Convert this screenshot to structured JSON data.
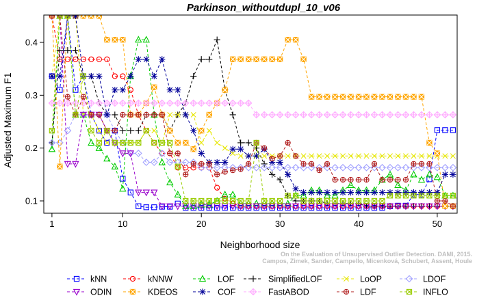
{
  "chart_data": {
    "type": "line",
    "title": "Parkinson_withoutdupl_10_v06",
    "xlabel": "Neighborhood size",
    "ylabel": "Adjusted Maximum F1",
    "xlim": [
      0,
      53
    ],
    "ylim": [
      0.06,
      0.45
    ],
    "xticks": [
      1,
      10,
      20,
      30,
      40,
      50
    ],
    "yticks": [
      0.1,
      0.2,
      0.3,
      0.4
    ],
    "grid": false,
    "legend_position": "bottom",
    "credit": "Campos, Zimek, Sander, Campello, Micenková, Schubert, Assent, Houle\nOn the Evaluation of Unsupervised Outlier Detection. DAMI, 2015.",
    "series": [
      {
        "name": "kNN",
        "color": "#0000ff",
        "marker": "square",
        "dash": "4,3",
        "values": [
          0.336,
          0.31,
          0.45,
          0.31,
          0.336,
          0.263,
          0.233,
          0.21,
          0.233,
          0.142,
          0.116,
          0.09,
          0.088,
          0.088,
          0.089,
          0.089,
          0.095,
          0.087,
          0.087,
          0.087,
          0.087,
          0.087,
          0.087,
          0.087,
          0.087,
          0.087,
          0.087,
          0.087,
          0.087,
          0.087,
          0.087,
          0.087,
          0.087,
          0.087,
          0.087,
          0.087,
          0.087,
          0.087,
          0.087,
          0.087,
          0.087,
          0.087,
          0.087,
          0.09,
          0.091,
          0.091,
          0.112,
          0.112,
          0.141,
          0.234,
          0.234,
          0.234
        ]
      },
      {
        "name": "kNNW",
        "color": "#ff0000",
        "marker": "circle",
        "dash": "4,3",
        "values": [
          0.45,
          0.368,
          0.368,
          0.368,
          0.368,
          0.368,
          0.368,
          0.368,
          0.336,
          0.336,
          0.31,
          0.263,
          0.233,
          0.21,
          0.19,
          0.19,
          0.163,
          0.163,
          0.163,
          0.163,
          0.163,
          0.125,
          0.104,
          0.095,
          0.09,
          0.09,
          0.09,
          0.09,
          0.09,
          0.09,
          0.09,
          0.09,
          0.09,
          0.09,
          0.09,
          0.09,
          0.09,
          0.09,
          0.09,
          0.09,
          0.09,
          0.09,
          0.09,
          0.09,
          0.09,
          0.09,
          0.09,
          0.09,
          0.09,
          0.09,
          0.09,
          0.09
        ]
      },
      {
        "name": "LOF",
        "color": "#00cc00",
        "marker": "triangle",
        "dash": "4,3",
        "values": [
          0.198,
          0.45,
          0.45,
          0.263,
          0.263,
          0.21,
          0.2,
          0.18,
          0.165,
          0.123,
          0.336,
          0.405,
          0.405,
          0.263,
          0.173,
          0.135,
          0.112,
          0.09,
          0.09,
          0.093,
          0.093,
          0.1,
          0.112,
          0.112,
          0.095,
          0.095,
          0.095,
          0.095,
          0.095,
          0.095,
          0.095,
          0.11,
          0.11,
          0.12,
          0.12,
          0.11,
          0.11,
          0.12,
          0.13,
          0.12,
          0.12,
          0.12,
          0.14,
          0.15,
          0.13,
          0.12,
          0.15,
          0.14,
          0.15,
          0.145,
          0.11,
          0.11
        ]
      },
      {
        "name": "SimplifiedLOF",
        "color": "#000000",
        "marker": "plus",
        "dash": "4,3",
        "values": [
          0.21,
          0.385,
          0.385,
          0.385,
          0.336,
          0.336,
          0.285,
          0.263,
          0.263,
          0.233,
          0.233,
          0.233,
          0.263,
          0.263,
          0.263,
          0.233,
          0.263,
          0.285,
          0.336,
          0.368,
          0.368,
          0.405,
          0.31,
          0.263,
          0.21,
          0.21,
          0.2,
          0.17,
          0.15,
          0.14,
          0.11,
          0.1,
          0.1,
          0.1,
          0.1,
          0.095,
          0.095,
          0.095,
          0.095,
          0.095,
          0.09,
          0.09,
          0.09,
          0.09,
          0.09,
          0.09,
          0.09,
          0.09,
          0.09,
          0.09,
          0.09,
          0.09
        ]
      },
      {
        "name": "LoOP",
        "color": "#e6e600",
        "marker": "cross",
        "dash": "4,3",
        "values": [
          0.336,
          0.45,
          0.45,
          0.45,
          0.263,
          0.263,
          0.233,
          0.21,
          0.21,
          0.21,
          0.21,
          0.21,
          0.233,
          0.233,
          0.21,
          0.263,
          0.263,
          0.263,
          0.263,
          0.21,
          0.233,
          0.21,
          0.2,
          0.19,
          0.185,
          0.185,
          0.185,
          0.185,
          0.185,
          0.185,
          0.185,
          0.185,
          0.185,
          0.185,
          0.185,
          0.185,
          0.185,
          0.185,
          0.185,
          0.185,
          0.185,
          0.185,
          0.185,
          0.185,
          0.185,
          0.185,
          0.185,
          0.185,
          0.185,
          0.185,
          0.185,
          0.185
        ]
      },
      {
        "name": "LDOF",
        "color": "#a0a0ff",
        "marker": "diamond",
        "dash": "4,3",
        "values": [
          0.21,
          0.21,
          0.233,
          0.263,
          0.263,
          0.263,
          0.263,
          0.263,
          0.233,
          0.21,
          0.19,
          0.19,
          0.173,
          0.173,
          0.19,
          0.173,
          0.173,
          0.173,
          0.173,
          0.163,
          0.163,
          0.163,
          0.163,
          0.163,
          0.163,
          0.163,
          0.163,
          0.163,
          0.163,
          0.163,
          0.163,
          0.163,
          0.163,
          0.163,
          0.163,
          0.163,
          0.163,
          0.163,
          0.163,
          0.163,
          0.163,
          0.163,
          0.163,
          0.163,
          0.163,
          0.163,
          0.163,
          0.163,
          0.163,
          0.163,
          0.163,
          0.163
        ]
      },
      {
        "name": "ODIN",
        "color": "#9900cc",
        "marker": "triangle-down",
        "dash": "4,3",
        "values": [
          0.45,
          0.45,
          0.17,
          0.17,
          0.263,
          0.263,
          0.263,
          0.233,
          0.21,
          0.19,
          0.19,
          0.116,
          0.116,
          0.116,
          0.09,
          0.09,
          0.09,
          0.09,
          0.09,
          0.09,
          0.09,
          0.09,
          0.09,
          0.09,
          0.09,
          0.09,
          0.09,
          0.09,
          0.09,
          0.09,
          0.09,
          0.09,
          0.09,
          0.09,
          0.09,
          0.09,
          0.09,
          0.09,
          0.09,
          0.09,
          0.09,
          0.09,
          0.09,
          0.09,
          0.09,
          0.09,
          0.09,
          0.09,
          0.09,
          0.09,
          0.09,
          0.09
        ]
      },
      {
        "name": "KDEOS",
        "color": "#ffa500",
        "marker": "square-filled",
        "dash": "4,3",
        "values": [
          0.45,
          0.165,
          0.45,
          0.45,
          0.45,
          0.45,
          0.45,
          0.405,
          0.405,
          0.405,
          0.263,
          0.263,
          0.285,
          0.315,
          0.263,
          0.233,
          0.21,
          0.21,
          0.198,
          0.233,
          0.263,
          0.285,
          0.31,
          0.368,
          0.368,
          0.368,
          0.368,
          0.368,
          0.368,
          0.368,
          0.405,
          0.405,
          0.368,
          0.297,
          0.297,
          0.297,
          0.297,
          0.297,
          0.297,
          0.297,
          0.297,
          0.297,
          0.297,
          0.297,
          0.297,
          0.297,
          0.297,
          0.297,
          0.21,
          0.19,
          0.09,
          0.09
        ]
      },
      {
        "name": "COF",
        "color": "#000099",
        "marker": "asterisk",
        "dash": "4,3",
        "values": [
          0.336,
          0.336,
          0.45,
          0.45,
          0.336,
          0.336,
          0.336,
          0.263,
          0.31,
          0.31,
          0.336,
          0.368,
          0.368,
          0.336,
          0.368,
          0.31,
          0.31,
          0.263,
          0.233,
          0.19,
          0.173,
          0.173,
          0.173,
          0.198,
          0.198,
          0.185,
          0.185,
          0.198,
          0.173,
          0.173,
          0.15,
          0.123,
          0.116,
          0.116,
          0.116,
          0.116,
          0.116,
          0.116,
          0.116,
          0.116,
          0.116,
          0.116,
          0.116,
          0.116,
          0.116,
          0.116,
          0.116,
          0.116,
          0.116,
          0.116,
          0.15,
          0.15
        ]
      },
      {
        "name": "FastABOD",
        "color": "#ffaaff",
        "marker": "diamond-plus",
        "dash": "4,3",
        "values": [
          0.285,
          0.285,
          0.285,
          0.285,
          0.285,
          0.285,
          0.285,
          0.285,
          0.285,
          0.285,
          0.285,
          0.285,
          0.285,
          0.285,
          0.285,
          0.285,
          0.285,
          0.285,
          0.285,
          0.285,
          0.285,
          0.285,
          0.285,
          0.285,
          0.285,
          0.285,
          0.263,
          0.263,
          0.263,
          0.263,
          0.263,
          0.263,
          0.263,
          0.263,
          0.263,
          0.263,
          0.263,
          0.263,
          0.263,
          0.263,
          0.263,
          0.263,
          0.263,
          0.263,
          0.263,
          0.263,
          0.263,
          0.263,
          0.263,
          0.263,
          0.263,
          0.263
        ]
      },
      {
        "name": "LDF",
        "color": "#b22222",
        "marker": "circle-plus",
        "dash": "4,3",
        "values": [
          0.45,
          0.45,
          0.297,
          0.263,
          0.297,
          0.263,
          0.263,
          0.233,
          0.233,
          0.263,
          0.263,
          0.263,
          0.263,
          0.263,
          0.263,
          0.19,
          0.19,
          0.15,
          0.17,
          0.17,
          0.17,
          0.15,
          0.155,
          0.158,
          0.16,
          0.17,
          0.21,
          0.2,
          0.18,
          0.185,
          0.21,
          0.185,
          0.17,
          0.17,
          0.158,
          0.17,
          0.14,
          0.14,
          0.14,
          0.14,
          0.14,
          0.17,
          0.14,
          0.14,
          0.14,
          0.14,
          0.17,
          0.17,
          0.17,
          0.1,
          0.1,
          0.09
        ]
      },
      {
        "name": "INFLO",
        "color": "#99cc00",
        "marker": "star",
        "dash": "4,3",
        "values": [
          0.233,
          0.45,
          0.45,
          0.263,
          0.336,
          0.233,
          0.21,
          0.233,
          0.21,
          0.21,
          0.21,
          0.21,
          0.233,
          0.21,
          0.21,
          0.21,
          0.165,
          0.1,
          0.1,
          0.1,
          0.1,
          0.1,
          0.1,
          0.1,
          0.1,
          0.1,
          0.21,
          0.1,
          0.1,
          0.1,
          0.11,
          0.11,
          0.1,
          0.1,
          0.1,
          0.1,
          0.1,
          0.1,
          0.1,
          0.1,
          0.1,
          0.1,
          0.1,
          0.11,
          0.11,
          0.11,
          0.11,
          0.11,
          0.11,
          0.11,
          0.11,
          0.11
        ]
      }
    ]
  }
}
